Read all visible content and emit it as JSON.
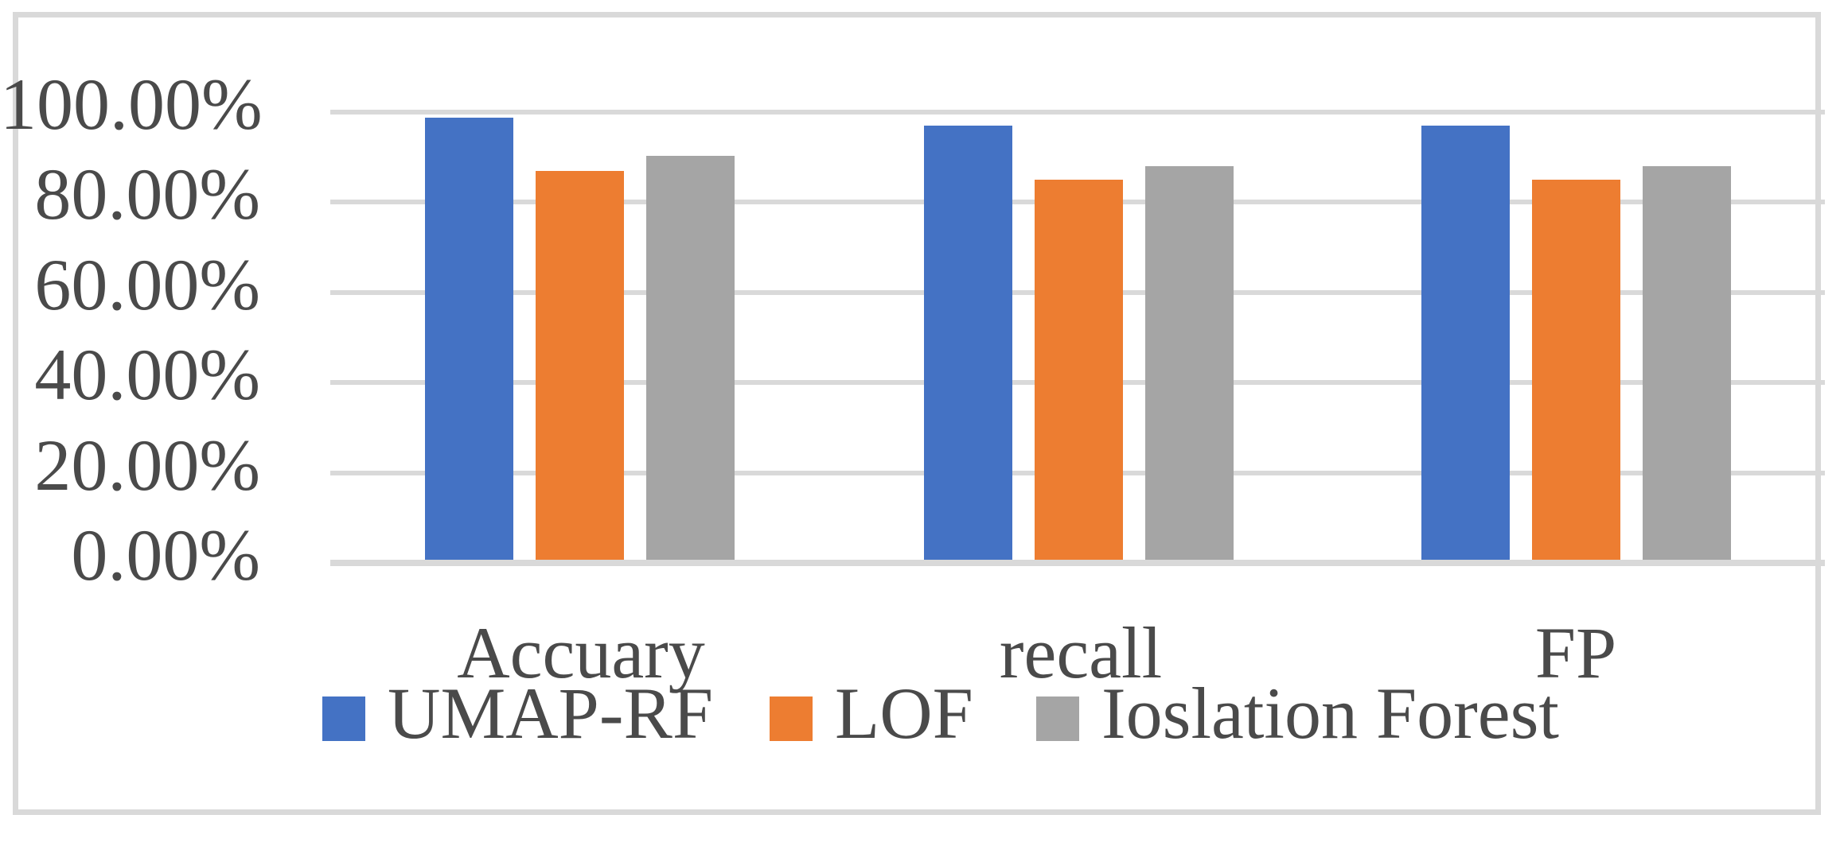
{
  "chart_data": {
    "type": "bar",
    "title": "",
    "categories": [
      "Accuary",
      "recall",
      "FP"
    ],
    "series": [
      {
        "name": "UMAP-RF",
        "color": "#4472C4",
        "values": [
          98.8,
          97.0,
          97.0
        ]
      },
      {
        "name": "LOF",
        "color": "#ED7D31",
        "values": [
          87.0,
          85.0,
          85.0
        ]
      },
      {
        "name": "Ioslation Forest",
        "color": "#A5A5A5",
        "values": [
          90.3,
          88.0,
          88.0
        ]
      }
    ],
    "values_unit": "%",
    "y_axis": {
      "min": 0,
      "max": 100,
      "step": 20,
      "ticks": [
        {
          "value": 0,
          "label": "0.00%"
        },
        {
          "value": 20,
          "label": "20.00%"
        },
        {
          "value": 40,
          "label": "40.00%"
        },
        {
          "value": 60,
          "label": "60.00%"
        },
        {
          "value": 80,
          "label": "80.00%"
        },
        {
          "value": 100,
          "label": "100.00%"
        }
      ]
    },
    "x_axis_label": "",
    "grid": true,
    "legend_position": "bottom"
  },
  "colors": {
    "background": "#FFFFFF",
    "border": "#D9D9D9",
    "grid": "#D9D9D9",
    "axis_line": "#D9D9D9",
    "text": "#4A4A4A"
  }
}
